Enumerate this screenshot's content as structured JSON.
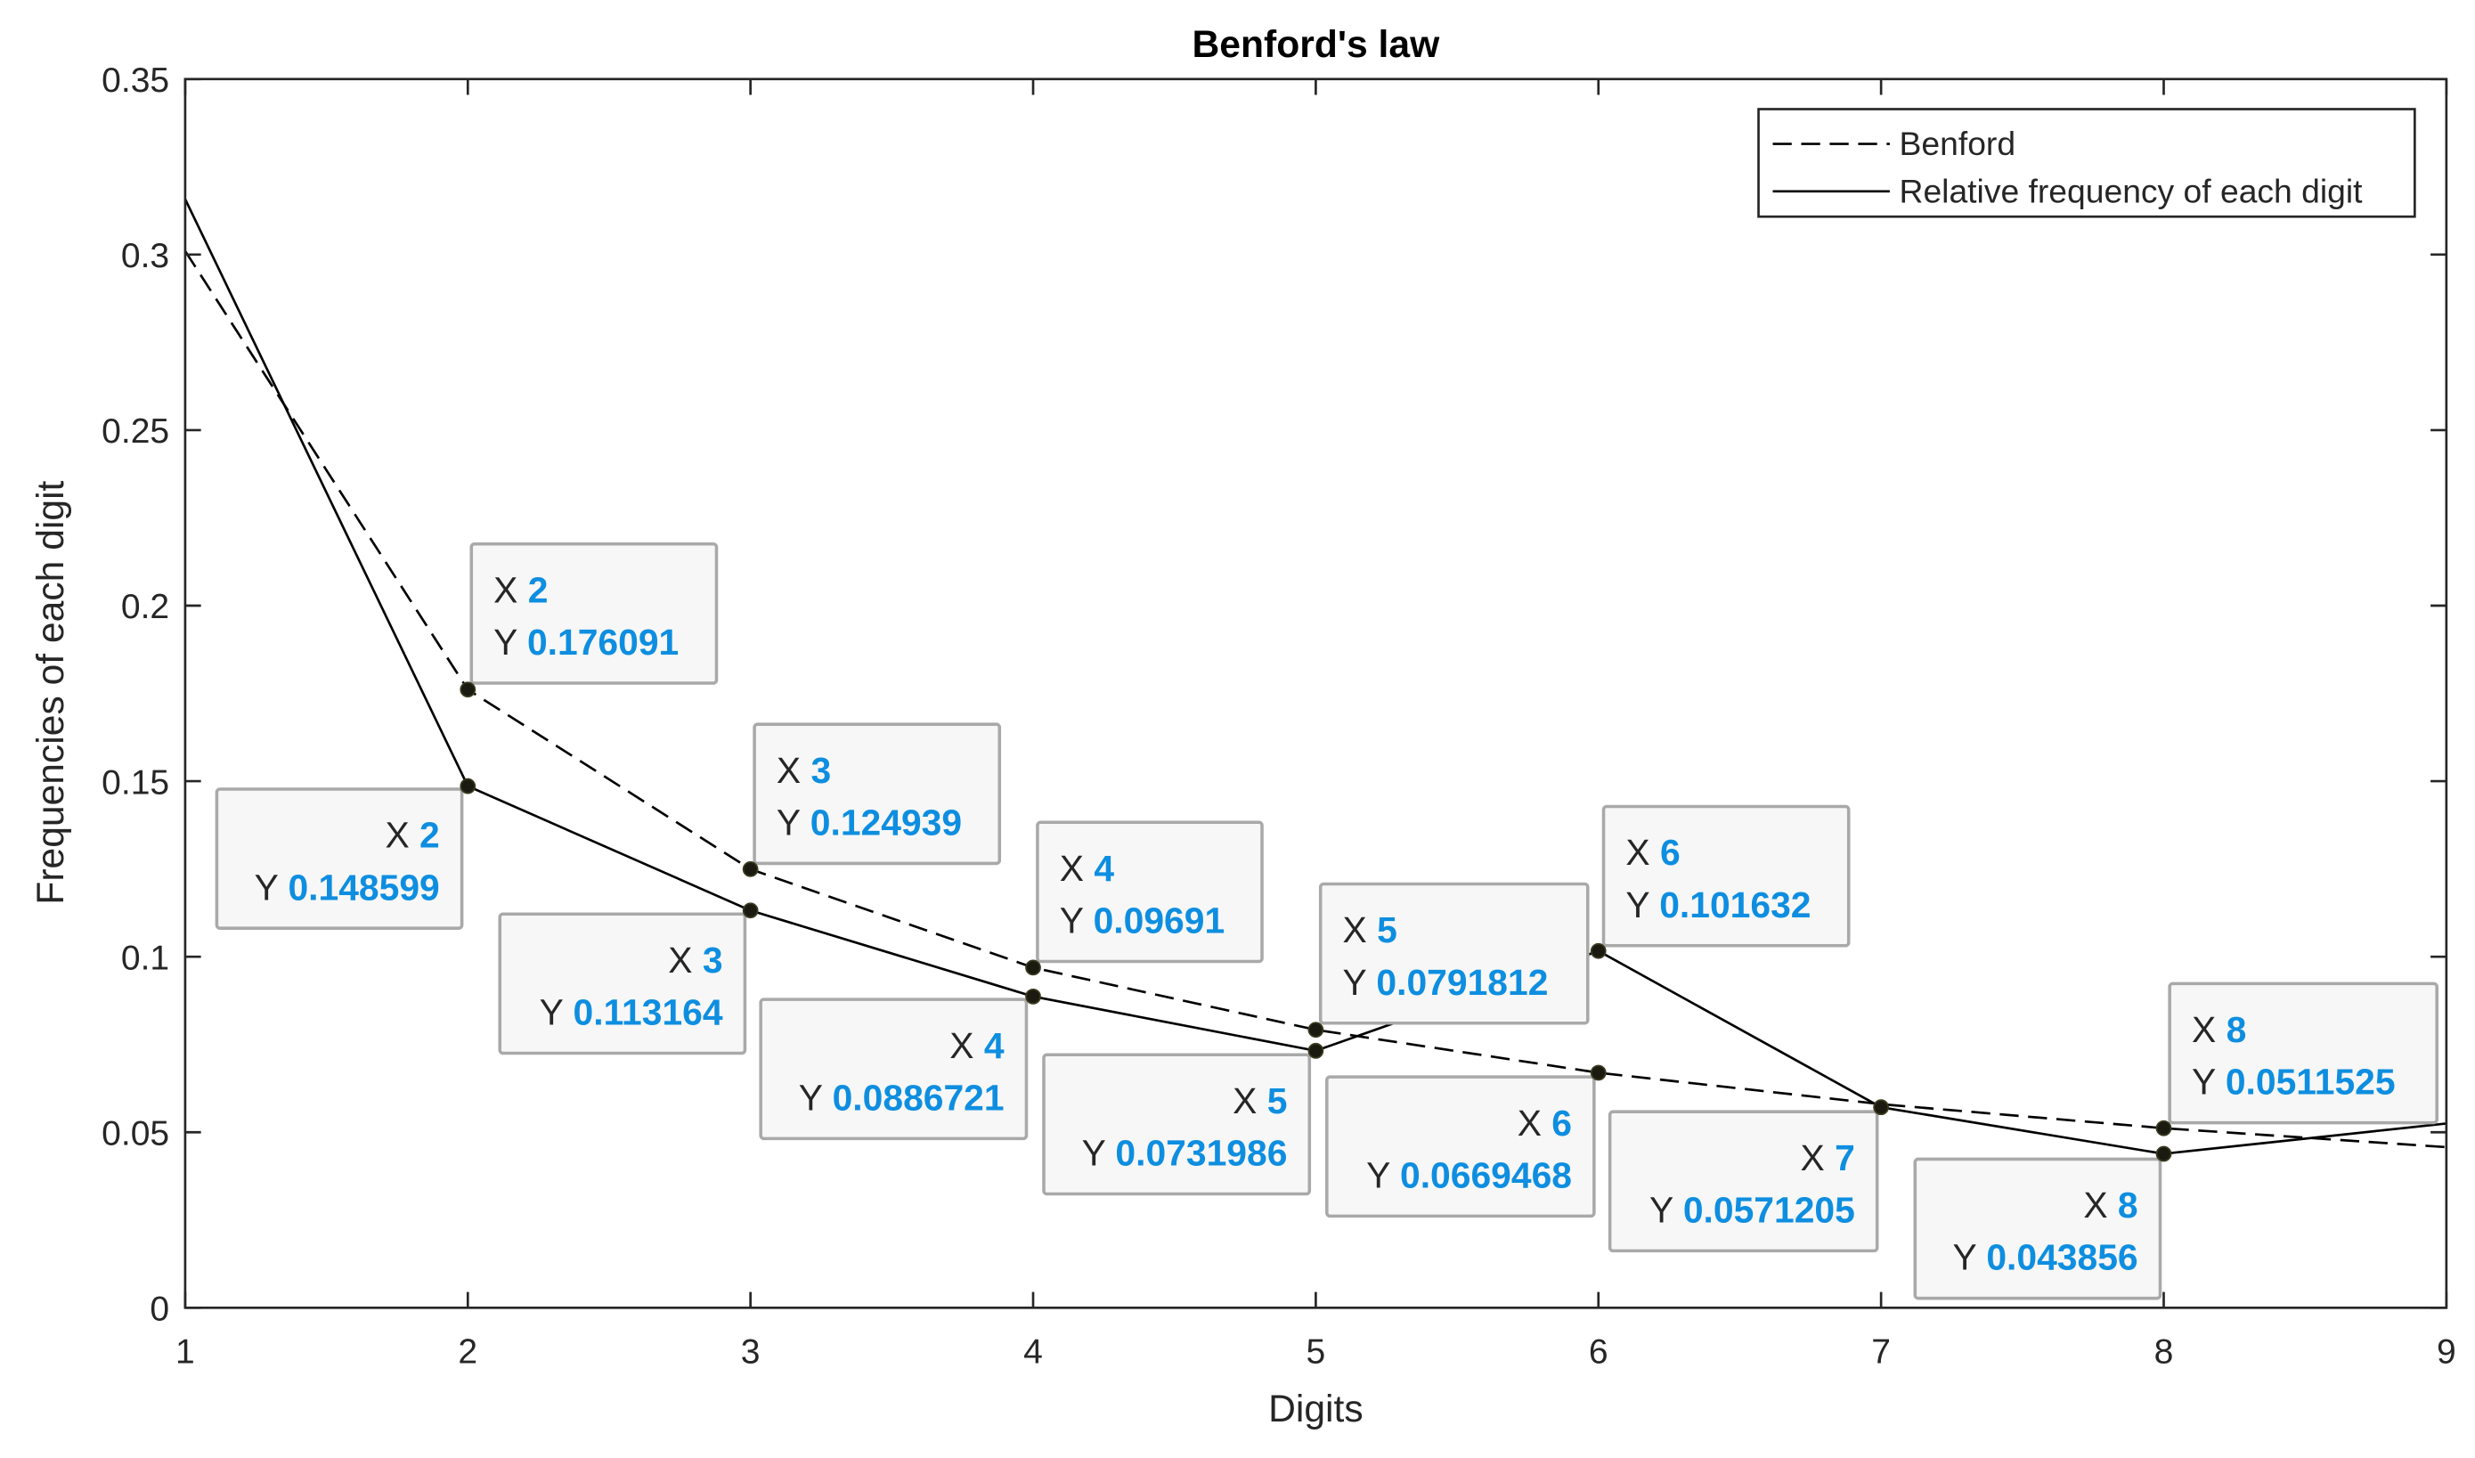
{
  "chart_data": {
    "type": "line",
    "title": "Benford's law",
    "xlabel": "Digits",
    "ylabel": "Frequencies of each digit",
    "xlim": [
      1,
      9
    ],
    "ylim": [
      0,
      0.35
    ],
    "x_ticks": [
      "1",
      "2",
      "3",
      "4",
      "5",
      "6",
      "7",
      "8",
      "9"
    ],
    "y_ticks": [
      "0",
      "0.05",
      "0.1",
      "0.15",
      "0.2",
      "0.25",
      "0.3",
      "0.35"
    ],
    "grid": false,
    "legend": {
      "position": "top-right",
      "entries": [
        "Benford",
        "Relative frequency of each digit"
      ]
    },
    "x": [
      1,
      2,
      3,
      4,
      5,
      6,
      7,
      8,
      9
    ],
    "series": [
      {
        "name": "Benford",
        "style": "dashed",
        "values": [
          0.30103,
          0.176091,
          0.124939,
          0.09691,
          0.0791812,
          0.0669468,
          0.0579919,
          0.0511525,
          0.0457575
        ]
      },
      {
        "name": "Relative frequency of each digit",
        "style": "solid",
        "values": [
          0.3158,
          0.148599,
          0.113164,
          0.0886721,
          0.0731986,
          0.101632,
          0.0571205,
          0.043856,
          0.0525
        ]
      }
    ],
    "datatips": [
      {
        "x_label": "X",
        "y_label": "Y",
        "x_value": "2",
        "y_value": "0.176091"
      },
      {
        "x_label": "X",
        "y_label": "Y",
        "x_value": "2",
        "y_value": "0.148599"
      },
      {
        "x_label": "X",
        "y_label": "Y",
        "x_value": "3",
        "y_value": "0.124939"
      },
      {
        "x_label": "X",
        "y_label": "Y",
        "x_value": "3",
        "y_value": "0.113164"
      },
      {
        "x_label": "X",
        "y_label": "Y",
        "x_value": "4",
        "y_value": "0.09691"
      },
      {
        "x_label": "X",
        "y_label": "Y",
        "x_value": "4",
        "y_value": "0.0886721"
      },
      {
        "x_label": "X",
        "y_label": "Y",
        "x_value": "5",
        "y_value": "0.0791812"
      },
      {
        "x_label": "X",
        "y_label": "Y",
        "x_value": "5",
        "y_value": "0.0731986"
      },
      {
        "x_label": "X",
        "y_label": "Y",
        "x_value": "6",
        "y_value": "0.101632"
      },
      {
        "x_label": "X",
        "y_label": "Y",
        "x_value": "6",
        "y_value": "0.0669468"
      },
      {
        "x_label": "X",
        "y_label": "Y",
        "x_value": "7",
        "y_value": "0.0571205"
      },
      {
        "x_label": "X",
        "y_label": "Y",
        "x_value": "8",
        "y_value": "0.0511525"
      },
      {
        "x_label": "X",
        "y_label": "Y",
        "x_value": "8",
        "y_value": "0.043856"
      }
    ]
  }
}
